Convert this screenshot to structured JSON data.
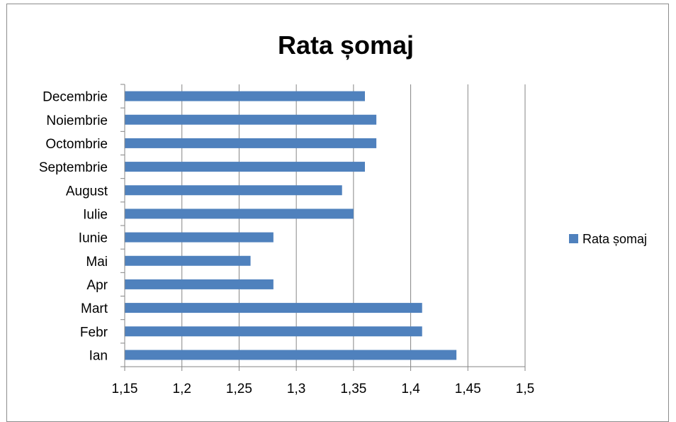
{
  "chart_data": {
    "type": "bar",
    "orientation": "horizontal",
    "title": "Rata șomaj",
    "categories": [
      "Ian",
      "Febr",
      "Mart",
      "Apr",
      "Mai",
      "Iunie",
      "Iulie",
      "August",
      "Septembrie",
      "Octombrie",
      "Noiembrie",
      "Decembrie"
    ],
    "series": [
      {
        "name": "Rata șomaj",
        "values": [
          1.44,
          1.41,
          1.41,
          1.28,
          1.26,
          1.28,
          1.35,
          1.34,
          1.36,
          1.37,
          1.37,
          1.36
        ]
      }
    ],
    "xlim": [
      1.15,
      1.5
    ],
    "xticks": [
      "1,15",
      "1,2",
      "1,25",
      "1,3",
      "1,35",
      "1,4",
      "1,45",
      "1,5"
    ],
    "xtick_values": [
      1.15,
      1.2,
      1.25,
      1.3,
      1.35,
      1.4,
      1.45,
      1.5
    ],
    "grid": "vertical",
    "legend": "right",
    "colors": {
      "bar": "#4f81bd",
      "grid": "#868686",
      "axis": "#868686"
    }
  }
}
